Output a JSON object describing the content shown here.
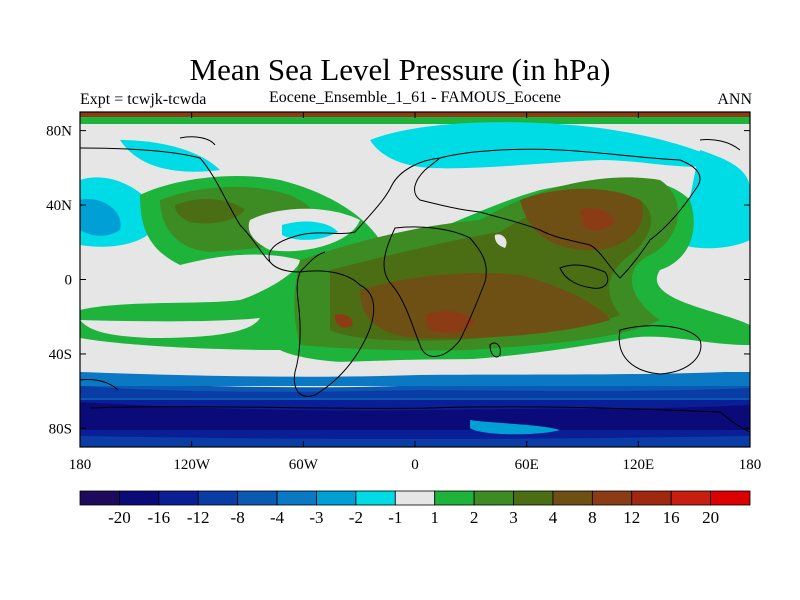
{
  "header": {
    "title": "Mean Sea Level Pressure (in hPa)",
    "left_label": "Expt = tcwjk-tcwda",
    "center_label": "Eocene_Ensemble_1_61 - FAMOUS_Eocene",
    "right_label": "ANN"
  },
  "map": {
    "projection": "cylindrical equidistant",
    "lon_range": [
      -180,
      180
    ],
    "lat_range": [
      -90,
      90
    ],
    "coastlines": "Eocene",
    "y_ticks": [
      {
        "lat": 80,
        "label": "80N"
      },
      {
        "lat": 40,
        "label": "40N"
      },
      {
        "lat": 0,
        "label": "0"
      },
      {
        "lat": -40,
        "label": "40S"
      },
      {
        "lat": -80,
        "label": "80S"
      }
    ],
    "x_ticks": [
      {
        "lon": -180,
        "label": "180"
      },
      {
        "lon": -120,
        "label": "120W"
      },
      {
        "lon": -60,
        "label": "60W"
      },
      {
        "lon": 0,
        "label": "0"
      },
      {
        "lon": 60,
        "label": "60E"
      },
      {
        "lon": 120,
        "label": "120E"
      },
      {
        "lon": 180,
        "label": "180"
      }
    ]
  },
  "colorbar": {
    "colors": [
      "#1e0a5a",
      "#0a0a78",
      "#0a1e96",
      "#0a3ca5",
      "#0a5ab4",
      "#0a78c3",
      "#00a0d7",
      "#00dce6",
      "#e6e6e6",
      "#1eb43c",
      "#3c8c23",
      "#4b6e14",
      "#6e5014",
      "#8c3c14",
      "#a0280f",
      "#c81e0f",
      "#dc0000"
    ],
    "labels": [
      "-20",
      "-16",
      "-12",
      "-8",
      "-4",
      "-3",
      "-2",
      "-1",
      "1",
      "2",
      "3",
      "4",
      "8",
      "12",
      "16",
      "20"
    ]
  },
  "palette": {
    "grey": "#e6e6e6",
    "light_green": "#1eb43c",
    "green": "#3c8c23",
    "olive": "#4b6e14",
    "brown": "#6e5014",
    "red_brown": "#8c3c14",
    "light_cyan": "#00dce6",
    "cyan": "#00a0d7",
    "blue_mid": "#0a78c3",
    "blue": "#0a5ab4",
    "navy": "#0a1e96",
    "dark_navy": "#0a0a78"
  }
}
